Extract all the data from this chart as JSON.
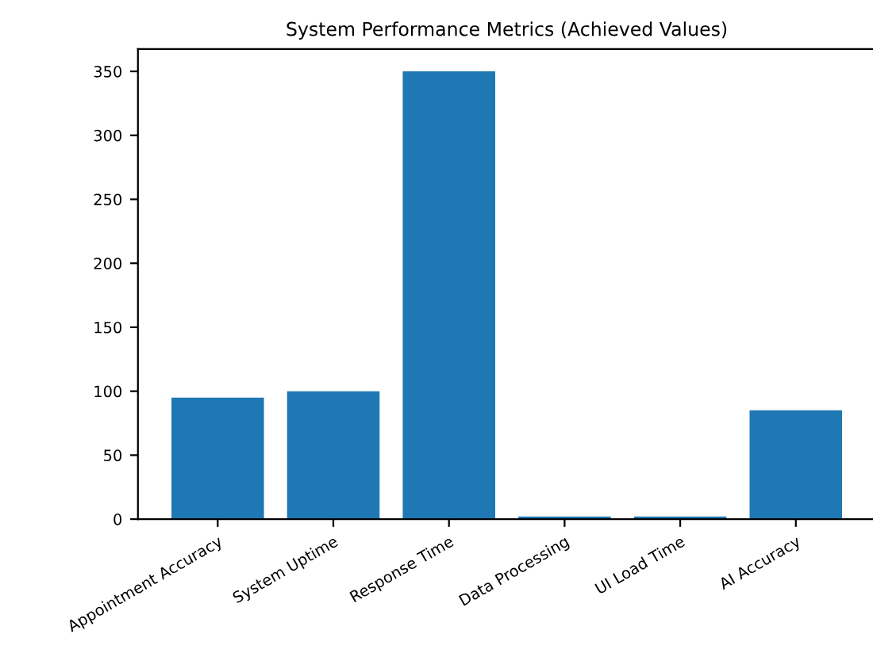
{
  "chart_data": {
    "type": "bar",
    "title": "System Performance Metrics (Achieved Values)",
    "categories": [
      "Appointment Accuracy",
      "System Uptime",
      "Response Time",
      "Data Processing",
      "UI Load Time",
      "AI Accuracy"
    ],
    "values": [
      95,
      100,
      350,
      2,
      2,
      85
    ],
    "color": "#1f77b4",
    "ylim": [
      0,
      367.5
    ],
    "yticks": [
      0,
      50,
      100,
      150,
      200,
      250,
      300,
      350
    ],
    "grid": false
  }
}
